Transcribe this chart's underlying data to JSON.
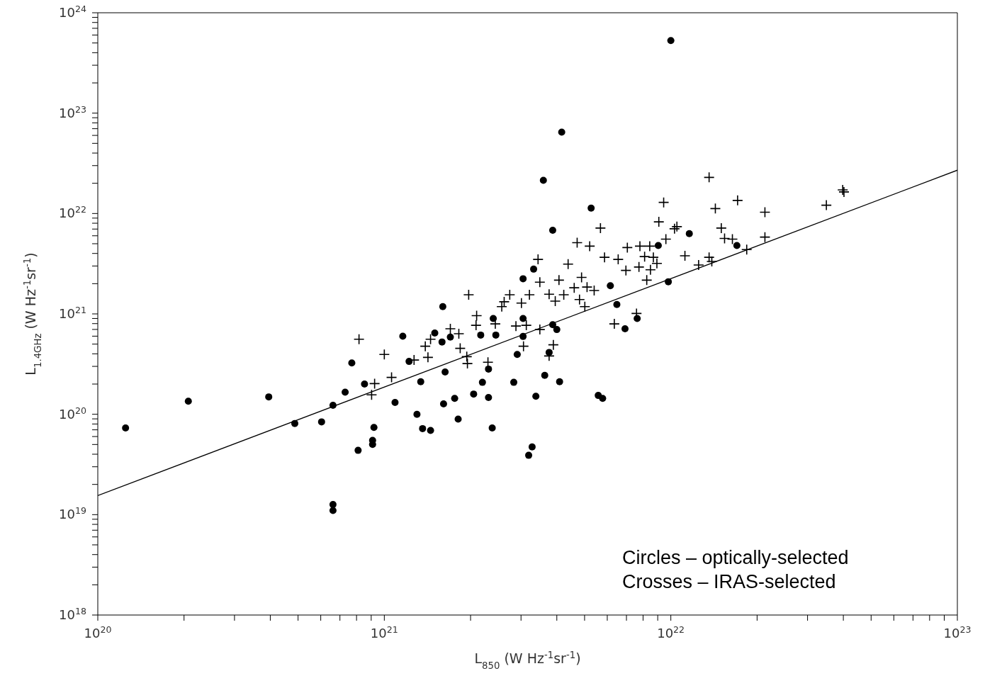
{
  "chart_data": {
    "type": "scatter",
    "xlabel": "L$_{850}$ (W Hz$^{-1}$sr$^{-1}$)",
    "ylabel": "L$_{1.4GHz}$ (W Hz$^{-1}$sr$^{-1}$)",
    "log": "xy",
    "xlim": [
      1e+20,
      1e+23
    ],
    "ylim": [
      1e+18,
      1e+24
    ],
    "xticks": [
      {
        "value": 1e+20,
        "label": "10$^{20}$"
      },
      {
        "value": 2e+20,
        "label": null
      },
      {
        "value": 3e+20,
        "label": null
      },
      {
        "value": 4e+20,
        "label": null
      },
      {
        "value": 5e+20,
        "label": null
      },
      {
        "value": 6e+20,
        "label": null
      },
      {
        "value": 7e+20,
        "label": null
      },
      {
        "value": 8e+20,
        "label": null
      },
      {
        "value": 9e+20,
        "label": null
      },
      {
        "value": 1e+21,
        "label": "10$^{21}$"
      },
      {
        "value": 2e+21,
        "label": null
      },
      {
        "value": 3e+21,
        "label": null
      },
      {
        "value": 4e+21,
        "label": null
      },
      {
        "value": 5e+21,
        "label": null
      },
      {
        "value": 6e+21,
        "label": null
      },
      {
        "value": 7e+21,
        "label": null
      },
      {
        "value": 8e+21,
        "label": null
      },
      {
        "value": 9e+21,
        "label": null
      },
      {
        "value": 1e+22,
        "label": "10$^{22}$"
      },
      {
        "value": 2e+22,
        "label": null
      },
      {
        "value": 3e+22,
        "label": null
      },
      {
        "value": 4e+22,
        "label": null
      },
      {
        "value": 5e+22,
        "label": null
      },
      {
        "value": 6e+22,
        "label": null
      },
      {
        "value": 7e+22,
        "label": null
      },
      {
        "value": 8e+22,
        "label": null
      },
      {
        "value": 9e+22,
        "label": null
      },
      {
        "value": 1e+23,
        "label": "10$^{23}$"
      }
    ],
    "yticks": [
      {
        "value": 1e+18,
        "label": "10$^{18}$"
      },
      {
        "value": 2e+18,
        "label": null
      },
      {
        "value": 3e+18,
        "label": null
      },
      {
        "value": 4e+18,
        "label": null
      },
      {
        "value": 5e+18,
        "label": null
      },
      {
        "value": 6e+18,
        "label": null
      },
      {
        "value": 7e+18,
        "label": null
      },
      {
        "value": 8e+18,
        "label": null
      },
      {
        "value": 9e+18,
        "label": null
      },
      {
        "value": 1e+19,
        "label": "10$^{19}$"
      },
      {
        "value": 2e+19,
        "label": null
      },
      {
        "value": 3e+19,
        "label": null
      },
      {
        "value": 4e+19,
        "label": null
      },
      {
        "value": 5e+19,
        "label": null
      },
      {
        "value": 6e+19,
        "label": null
      },
      {
        "value": 7e+19,
        "label": null
      },
      {
        "value": 8e+19,
        "label": null
      },
      {
        "value": 9e+19,
        "label": null
      },
      {
        "value": 1e+20,
        "label": "10$^{20}$"
      },
      {
        "value": 2e+20,
        "label": null
      },
      {
        "value": 3e+20,
        "label": null
      },
      {
        "value": 4e+20,
        "label": null
      },
      {
        "value": 5e+20,
        "label": null
      },
      {
        "value": 6e+20,
        "label": null
      },
      {
        "value": 7e+20,
        "label": null
      },
      {
        "value": 8e+20,
        "label": null
      },
      {
        "value": 9e+20,
        "label": null
      },
      {
        "value": 1e+21,
        "label": "10$^{21}$"
      },
      {
        "value": 2e+21,
        "label": null
      },
      {
        "value": 3e+21,
        "label": null
      },
      {
        "value": 4e+21,
        "label": null
      },
      {
        "value": 5e+21,
        "label": null
      },
      {
        "value": 6e+21,
        "label": null
      },
      {
        "value": 7e+21,
        "label": null
      },
      {
        "value": 8e+21,
        "label": null
      },
      {
        "value": 9e+21,
        "label": null
      },
      {
        "value": 1e+22,
        "label": "10$^{22}$"
      },
      {
        "value": 2e+22,
        "label": null
      },
      {
        "value": 3e+22,
        "label": null
      },
      {
        "value": 4e+22,
        "label": null
      },
      {
        "value": 5e+22,
        "label": null
      },
      {
        "value": 6e+22,
        "label": null
      },
      {
        "value": 7e+22,
        "label": null
      },
      {
        "value": 8e+22,
        "label": null
      },
      {
        "value": 9e+22,
        "label": null
      },
      {
        "value": 1e+23,
        "label": "10$^{23}$"
      },
      {
        "value": 2e+23,
        "label": null
      },
      {
        "value": 3e+23,
        "label": null
      },
      {
        "value": 4e+23,
        "label": null
      },
      {
        "value": 5e+23,
        "label": null
      },
      {
        "value": 6e+23,
        "label": null
      },
      {
        "value": 7e+23,
        "label": null
      },
      {
        "value": 8e+23,
        "label": null
      },
      {
        "value": 9e+23,
        "label": null
      },
      {
        "value": 1e+24,
        "label": "10$^{24}$"
      }
    ],
    "annotations": [
      "Circles – optically-selected",
      "Crosses – IRAS-selected"
    ],
    "series": [
      {
        "marker": "circle",
        "color": "#000000",
        "x": [
          1.25e+20,
          2.07e+20,
          3.95e+20,
          4.87e+20,
          6.04e+20,
          6.62e+20,
          6.62e+20,
          6.62e+20,
          7.3e+20,
          7.7e+20,
          8.53e+20,
          9.2e+20,
          9.1e+20,
          9.1e+20,
          8.1e+20,
          1.09e+21,
          3.32e+21,
          3.05e+21,
          1.6e+21,
          1.16e+21,
          1.5e+21,
          1.59e+21,
          1.7e+21,
          1.22e+21,
          2.17e+21,
          2.45e+21,
          2.4e+21,
          3.05e+21,
          3.05e+21,
          3.87e+21,
          4e+21,
          2.91e+21,
          3.76e+21,
          2.31e+21,
          1.63e+21,
          1.34e+21,
          2.2e+21,
          2.83e+21,
          3.63e+21,
          4.09e+21,
          1.3e+21,
          1.61e+21,
          1.76e+21,
          2.05e+21,
          2.31e+21,
          3.38e+21,
          5.58e+21,
          5.78e+21,
          1.81e+21,
          2.38e+21,
          1.36e+21,
          1.45e+21,
          3.28e+21,
          3.19e+21,
          6.15e+21,
          6.48e+21,
          7.63e+21,
          6.92e+21,
          9.8e+21,
          4.16e+21,
          3.59e+21,
          5.27e+21,
          3.87e+21,
          9.04e+21,
          1e+22,
          1.16e+22,
          1.7e+22
        ],
        "values": [
          7.3e+19,
          1.35e+20,
          1.49e+20,
          8.1e+19,
          8.4e+19,
          1.23e+20,
          1.26e+19,
          1.1e+19,
          1.66e+20,
          3.24e+20,
          2e+20,
          7.4e+19,
          5.5e+19,
          5e+19,
          4.37e+19,
          1.31e+20,
          2.79e+21,
          2.24e+21,
          1.18e+21,
          6e+20,
          6.45e+20,
          5.25e+20,
          5.87e+20,
          3.36e+20,
          6.15e+20,
          6.15e+20,
          9e+20,
          9e+20,
          5.96e+20,
          7.8e+20,
          6.98e+20,
          3.94e+20,
          4.13e+20,
          2.82e+20,
          2.64e+20,
          2.11e+20,
          2.08e+20,
          2.08e+20,
          2.44e+20,
          2.11e+20,
          1e+20,
          1.27e+20,
          1.44e+20,
          1.59e+20,
          1.47e+20,
          1.51e+20,
          1.54e+20,
          1.44e+20,
          8.95e+19,
          7.3e+19,
          7.2e+19,
          6.9e+19,
          4.73e+19,
          3.9e+19,
          1.91e+21,
          1.24e+21,
          9e+20,
          7.1e+20,
          2.09e+21,
          6.46e+22,
          2.14e+22,
          1.13e+22,
          6.8e+21,
          4.8e+21,
          5.28e+23,
          6.3e+21,
          4.8e+21
        ]
      },
      {
        "marker": "cross",
        "color": "#000000",
        "x": [
          8.16e+20,
          1e+21,
          1.06e+21,
          9.25e+20,
          9.03e+20,
          1.97e+21,
          2.1e+21,
          2.09e+21,
          1.7e+21,
          1.82e+21,
          1.39e+21,
          1.45e+21,
          1.42e+21,
          1.27e+21,
          1.84e+21,
          1.94e+21,
          1.95e+21,
          2.3e+21,
          2.44e+21,
          2.74e+21,
          2.57e+21,
          2.62e+21,
          3.01e+21,
          3.21e+21,
          3.49e+21,
          4.07e+21,
          3.76e+21,
          3.95e+21,
          4.23e+21,
          4.88e+21,
          4.6e+21,
          5.1e+21,
          5.4e+21,
          4.8e+21,
          5.01e+21,
          2.88e+21,
          3.13e+21,
          3.06e+21,
          3.49e+21,
          3.89e+21,
          3.76e+21,
          6.35e+21,
          7.59e+21,
          6.97e+21,
          8.24e+21,
          8.49e+21,
          7.74e+21,
          3.44e+21,
          4.38e+21,
          4.71e+21,
          5.21e+21,
          5.68e+21,
          5.87e+21,
          6.55e+21,
          7.05e+21,
          7.8e+21,
          8.44e+21,
          8.1e+21,
          8.69e+21,
          8.94e+21,
          9.08e+21,
          9.44e+21,
          9.61e+21,
          1.03e+22,
          1.36e+22,
          1.43e+22,
          1.71e+22,
          2.13e+22,
          1.05e+22,
          1.5e+22,
          1.54e+22,
          1.64e+22,
          1.12e+22,
          1.36e+22,
          1.39e+22,
          1.25e+22,
          1.84e+22,
          2.13e+22,
          3.49e+22,
          3.98e+22,
          4.02e+22
        ],
        "values": [
          5.59e+20,
          3.94e+20,
          2.33e+20,
          2.02e+20,
          1.56e+20,
          1.55e+21,
          9.6e+20,
          7.7e+20,
          7.1e+20,
          6.35e+20,
          4.76e+20,
          5.59e+20,
          3.69e+20,
          3.47e+20,
          4.54e+20,
          3.75e+20,
          3.2e+20,
          3.3e+20,
          7.95e+20,
          1.55e+21,
          1.18e+21,
          1.32e+21,
          1.28e+21,
          1.55e+21,
          2.07e+21,
          2.17e+21,
          1.57e+21,
          1.34e+21,
          1.55e+21,
          2.31e+21,
          1.82e+21,
          1.85e+21,
          1.71e+21,
          1.39e+21,
          1.18e+21,
          7.57e+20,
          7.7e+20,
          4.76e+20,
          6.98e+20,
          4.92e+20,
          3.81e+20,
          7.95e+20,
          1.01e+21,
          2.71e+21,
          2.17e+21,
          2.75e+21,
          2.93e+21,
          3.49e+21,
          3.13e+21,
          5.12e+21,
          4.73e+21,
          7.16e+21,
          3.66e+21,
          3.49e+21,
          4.58e+21,
          4.73e+21,
          4.73e+21,
          3.72e+21,
          3.66e+21,
          3.18e+21,
          8.26e+21,
          1.29e+22,
          5.55e+21,
          7.05e+21,
          2.29e+22,
          1.12e+22,
          1.35e+22,
          1.03e+22,
          7.4e+21,
          7.16e+21,
          5.64e+21,
          5.55e+21,
          3.79e+21,
          3.66e+21,
          3.33e+21,
          3.07e+21,
          4.37e+21,
          5.82e+21,
          1.21e+22,
          1.72e+22,
          1.64e+22
        ]
      },
      {
        "type": "line",
        "marker": "none",
        "line_style": "solid",
        "color": "#000000",
        "x": [
          1e+20,
          1e+23
        ],
        "values": [
          1.55e+19,
          2.7e+22
        ]
      }
    ]
  }
}
